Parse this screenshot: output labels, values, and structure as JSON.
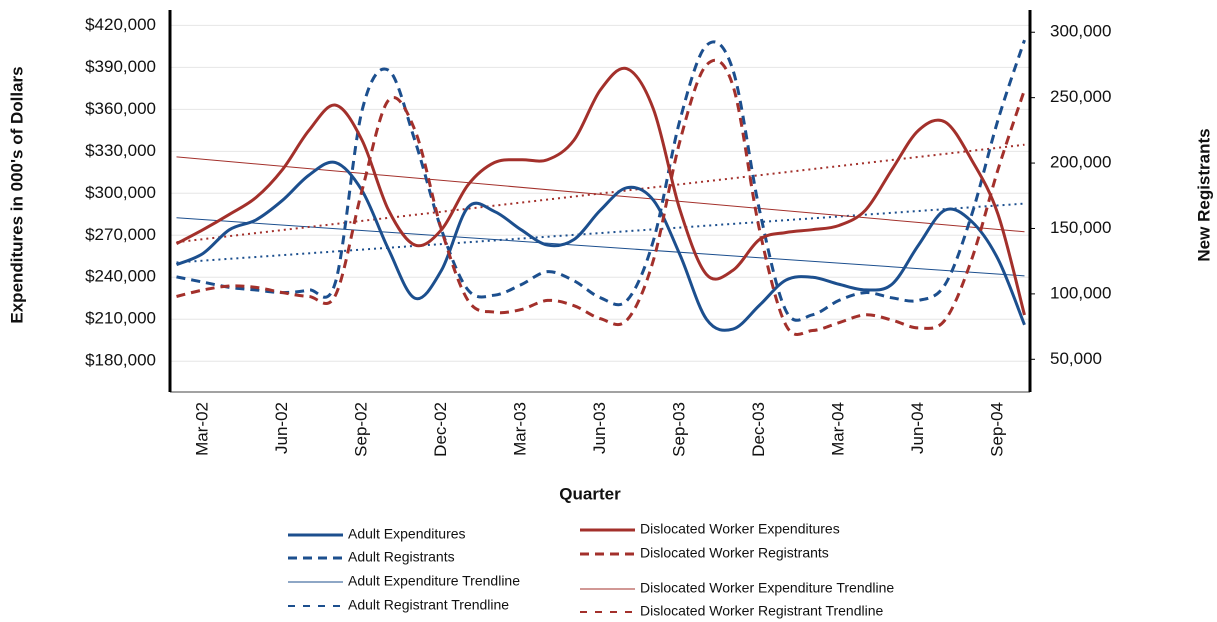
{
  "chart_data": {
    "type": "line",
    "x_label": "Quarter",
    "y_label": "Expenditures in 000's of Dollars",
    "y2_label": "New Registrants",
    "categories": [
      null,
      "Mar-02",
      null,
      null,
      "Jun-02",
      null,
      null,
      "Sep-02",
      null,
      null,
      "Dec-02",
      null,
      null,
      "Mar-03",
      null,
      null,
      "Jun-03",
      null,
      null,
      "Sep-03",
      null,
      null,
      "Dec-03",
      null,
      null,
      "Mar-04",
      null,
      null,
      "Jun-04",
      null,
      null,
      "Sep-04",
      null
    ],
    "series": [
      {
        "name": "Adult Expenditures",
        "color": "#1c4f8e",
        "dash": "solid",
        "width": 3,
        "values": [
          249000,
          257000,
          274000,
          281000,
          295000,
          313000,
          322000,
          302000,
          260000,
          225000,
          245000,
          290000,
          287000,
          274000,
          263000,
          267000,
          288000,
          304000,
          295000,
          256000,
          210000,
          203000,
          220000,
          238000,
          240000,
          235000,
          231000,
          235000,
          263000,
          288000,
          280000,
          253000,
          206000
        ]
      },
      {
        "name": "Adult Registrants",
        "color": "#1c4f8e",
        "dash": "dashed",
        "width": 3,
        "axis": "y2",
        "values": [
          113000,
          109000,
          105000,
          103000,
          101000,
          103000,
          109000,
          240000,
          271000,
          217000,
          149000,
          103000,
          99000,
          107000,
          117000,
          110000,
          97000,
          95000,
          141000,
          233000,
          290000,
          271000,
          164000,
          87000,
          84000,
          95000,
          101000,
          97000,
          95000,
          107000,
          160000,
          233000,
          294000
        ]
      },
      {
        "name": "Dislocated Worker Expenditures",
        "color": "#a3302b",
        "dash": "solid",
        "width": 3,
        "values": [
          264000,
          274000,
          285000,
          297000,
          317000,
          345000,
          363000,
          338000,
          288000,
          263000,
          274000,
          306000,
          322000,
          324000,
          324000,
          338000,
          374000,
          389000,
          360000,
          288000,
          242000,
          245000,
          267000,
          272000,
          274000,
          277000,
          288000,
          317000,
          345000,
          351000,
          324000,
          285000,
          213000
        ]
      },
      {
        "name": "Dislocated Worker Registrants",
        "color": "#a3302b",
        "dash": "dashed",
        "width": 3,
        "axis": "y2",
        "values": [
          98000,
          103000,
          106000,
          105000,
          101000,
          98000,
          99000,
          179000,
          248000,
          225000,
          149000,
          95000,
          86000,
          88000,
          95000,
          91000,
          81000,
          80000,
          126000,
          217000,
          275000,
          259000,
          149000,
          76000,
          72000,
          78000,
          84000,
          80000,
          74000,
          80000,
          126000,
          195000,
          256000
        ]
      }
    ],
    "trendlines": [
      {
        "name": "Adult Expenditure Trendline",
        "color": "#1c4f8e",
        "dash": "solid",
        "width": 1,
        "values": [
          282500,
          241000
        ]
      },
      {
        "name": "Adult Registrant Trendline",
        "color": "#1c4f8e",
        "dash": "dotted",
        "width": 2,
        "axis": "y2",
        "values": [
          124000,
          169000
        ]
      },
      {
        "name": "Dislocated Worker Expenditure Trendline",
        "color": "#a3302b",
        "dash": "solid",
        "width": 1,
        "values": [
          326000,
          272500
        ]
      },
      {
        "name": "Dislocated Worker Registrant Trendline",
        "color": "#a3302b",
        "dash": "dotted",
        "width": 2,
        "axis": "y2",
        "values": [
          139500,
          214000
        ]
      }
    ],
    "ylim": [
      158000,
      431000
    ],
    "yticks": [
      {
        "value": 180000,
        "label": "$180,000"
      },
      {
        "value": 210000,
        "label": "$210,000"
      },
      {
        "value": 240000,
        "label": "$240,000"
      },
      {
        "value": 270000,
        "label": "$270,000"
      },
      {
        "value": 300000,
        "label": "$300,000"
      },
      {
        "value": 330000,
        "label": "$330,000"
      },
      {
        "value": 360000,
        "label": "$360,000"
      },
      {
        "value": 390000,
        "label": "$390,000"
      },
      {
        "value": 420000,
        "label": "$420,000"
      }
    ],
    "y2lim": [
      25000,
      317000
    ],
    "y2ticks": [
      {
        "value": 50000,
        "label": "50,000"
      },
      {
        "value": 100000,
        "label": "100,000"
      },
      {
        "value": 150000,
        "label": "150,000"
      },
      {
        "value": 200000,
        "label": "200,000"
      },
      {
        "value": 250000,
        "label": "250,000"
      },
      {
        "value": 300000,
        "label": "300,000"
      }
    ],
    "grid": true
  }
}
